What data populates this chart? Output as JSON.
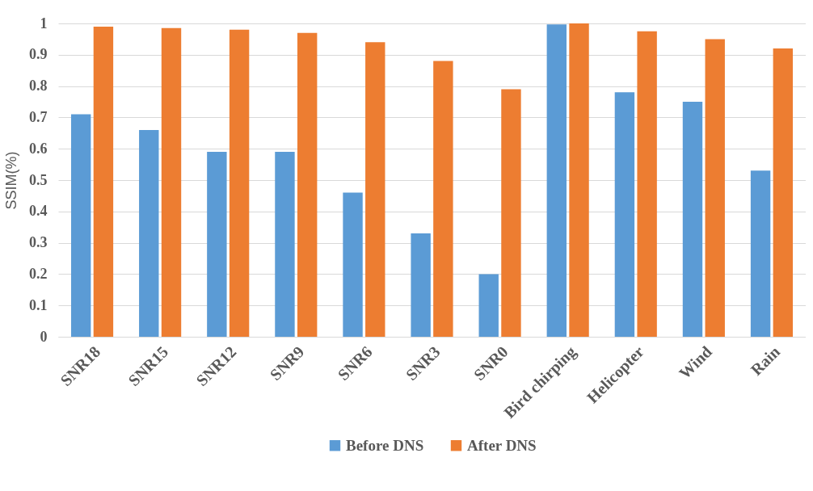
{
  "chart_data": {
    "type": "bar",
    "ylabel": "SSIM(%)",
    "categories": [
      "SNR18",
      "SNR15",
      "SNR12",
      "SNR9",
      "SNR6",
      "SNR3",
      "SNR0",
      "Bird chirping",
      "Helicopter",
      "Wind",
      "Rain"
    ],
    "series": [
      {
        "name": "Before DNS",
        "color": "#5b9bd5",
        "values": [
          0.71,
          0.66,
          0.59,
          0.59,
          0.46,
          0.33,
          0.2,
          0.997,
          0.78,
          0.75,
          0.53
        ]
      },
      {
        "name": "After DNS",
        "color": "#ed7d31",
        "values": [
          0.99,
          0.985,
          0.98,
          0.97,
          0.94,
          0.88,
          0.79,
          1.0,
          0.975,
          0.95,
          0.92
        ]
      }
    ],
    "ylim": [
      0,
      1
    ],
    "yticks": [
      0,
      0.1,
      0.2,
      0.3,
      0.4,
      0.5,
      0.6,
      0.7,
      0.8,
      0.9,
      1
    ],
    "grid": "y",
    "legend": "bottom"
  }
}
